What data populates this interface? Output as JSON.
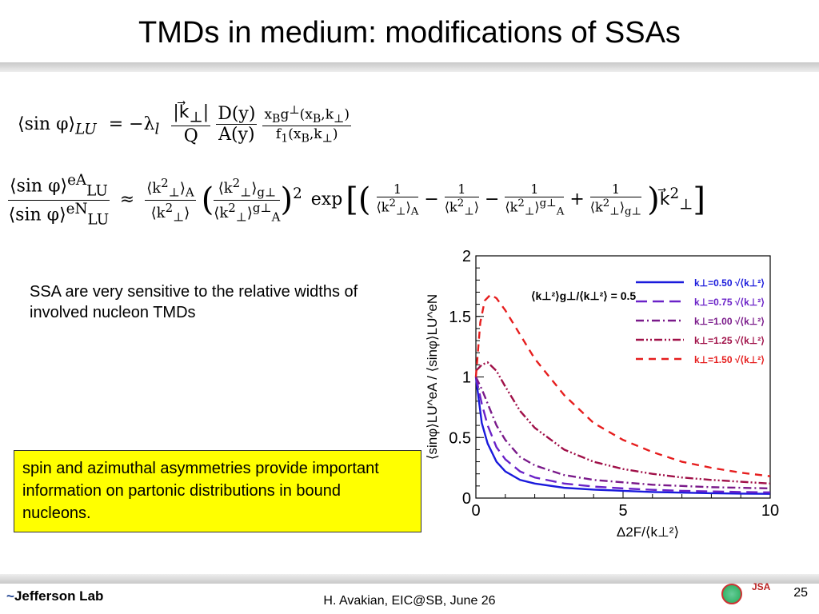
{
  "slide": {
    "title": "TMDs in medium: modifications of SSAs",
    "eq1": "⟨sin φ⟩_LU = −λ_l (|k⃗⊥|/Q) (D(y)/A(y)) (x_B g⊥(x_B,k⊥) / f₁(x_B,k⊥))",
    "eq2": "⟨sin φ⟩_LU^eA / ⟨sin φ⟩_LU^eN ≈ (⟨k⊥²⟩_A/⟨k⊥²⟩) (⟨k⊥²⟩_g⊥ / ⟨k⊥²⟩_A^g⊥)² exp[(1/⟨k⊥²⟩_A − 1/⟨k⊥²⟩ − 1/⟨k⊥²⟩_A^g⊥ + 1/⟨k⊥²⟩_g⊥) k⃗⊥²]",
    "sensitivity_text": "SSA are very sensitive to the relative widths of involved nucleon TMDs",
    "highlight_text": "spin and azimuthal asymmetries provide important information on partonic distributions in bound nucleons.",
    "footer_left": "Jefferson Lab",
    "footer_center": "H. Avakian, EIC@SB,  June 26",
    "page_number": "25",
    "jsa_logo": "JSA"
  },
  "chart_data": {
    "type": "line",
    "xlabel": "Δ2F/⟨k⊥²⟩",
    "ylabel": "⟨sinφ⟩LU^eA / ⟨sinφ⟩LU^eN",
    "xlim": [
      0,
      10
    ],
    "ylim": [
      0,
      2
    ],
    "x_ticks": [
      "0",
      "5",
      "10"
    ],
    "y_ticks": [
      "0",
      "0.5",
      "1",
      "1.5",
      "2"
    ],
    "annotation": "⟨k⊥²⟩g⊥/⟨k⊥²⟩ = 0.5",
    "legend_position": "top-right",
    "series": [
      {
        "name": "k⊥=0.50 √⟨k⊥²⟩",
        "color": "#1a1adc",
        "dash": "",
        "x": [
          0,
          0.2,
          0.4,
          0.7,
          1,
          1.5,
          2,
          3,
          4,
          5,
          6,
          7,
          8,
          9,
          10
        ],
        "y": [
          1,
          0.62,
          0.45,
          0.3,
          0.22,
          0.15,
          0.12,
          0.085,
          0.07,
          0.06,
          0.05,
          0.045,
          0.04,
          0.037,
          0.035
        ]
      },
      {
        "name": "k⊥=0.75 √⟨k⊥²⟩",
        "color": "#6a22c8",
        "dash": "14,7",
        "x": [
          0,
          0.2,
          0.4,
          0.7,
          1,
          1.5,
          2,
          3,
          4,
          5,
          6,
          7,
          8,
          9,
          10
        ],
        "y": [
          1,
          0.78,
          0.6,
          0.42,
          0.32,
          0.22,
          0.17,
          0.12,
          0.095,
          0.08,
          0.068,
          0.06,
          0.055,
          0.05,
          0.047
        ]
      },
      {
        "name": "k⊥=1.00 √⟨k⊥²⟩",
        "color": "#7a1a8a",
        "dash": "10,4,2,4",
        "x": [
          0,
          0.2,
          0.4,
          0.7,
          1,
          1.5,
          2,
          3,
          4,
          5,
          6,
          7,
          8,
          9,
          10
        ],
        "y": [
          1,
          0.9,
          0.78,
          0.6,
          0.48,
          0.34,
          0.27,
          0.19,
          0.15,
          0.13,
          0.11,
          0.1,
          0.09,
          0.085,
          0.08
        ]
      },
      {
        "name": "k⊥=1.25 √⟨k⊥²⟩",
        "color": "#a01048",
        "dash": "10,3,2,3,2,3",
        "x": [
          0,
          0.2,
          0.4,
          0.7,
          1,
          1.5,
          2,
          3,
          4,
          5,
          6,
          7,
          8,
          9,
          10
        ],
        "y": [
          1.05,
          1.1,
          1.12,
          1.05,
          0.92,
          0.72,
          0.58,
          0.4,
          0.3,
          0.24,
          0.2,
          0.17,
          0.15,
          0.135,
          0.12
        ]
      },
      {
        "name": "k⊥=1.50 √⟨k⊥²⟩",
        "color": "#e61e1e",
        "dash": "9,7",
        "x": [
          0,
          0.15,
          0.3,
          0.5,
          0.7,
          1,
          1.5,
          2,
          3,
          4,
          5,
          6,
          7,
          8,
          9,
          10
        ],
        "y": [
          1.0,
          1.45,
          1.63,
          1.68,
          1.65,
          1.55,
          1.35,
          1.15,
          0.85,
          0.62,
          0.48,
          0.38,
          0.3,
          0.25,
          0.21,
          0.18
        ]
      }
    ]
  }
}
